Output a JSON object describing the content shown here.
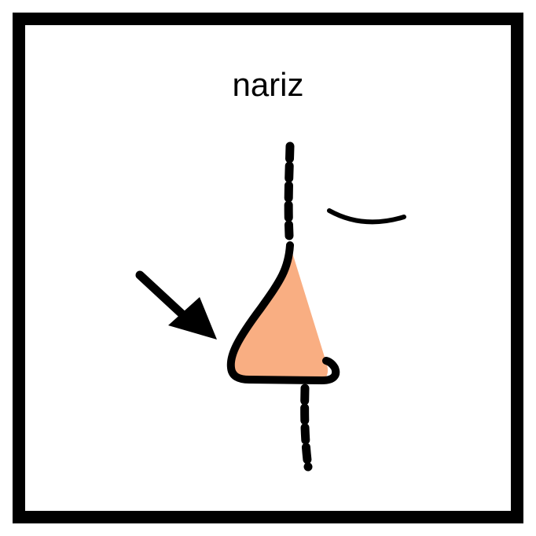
{
  "card": {
    "label": "nariz",
    "illustration": "nose-profile-pictogram",
    "colors": {
      "border": "#000000",
      "background": "#ffffff",
      "nose_fill": "#F9AE82",
      "ink": "#000000"
    }
  }
}
